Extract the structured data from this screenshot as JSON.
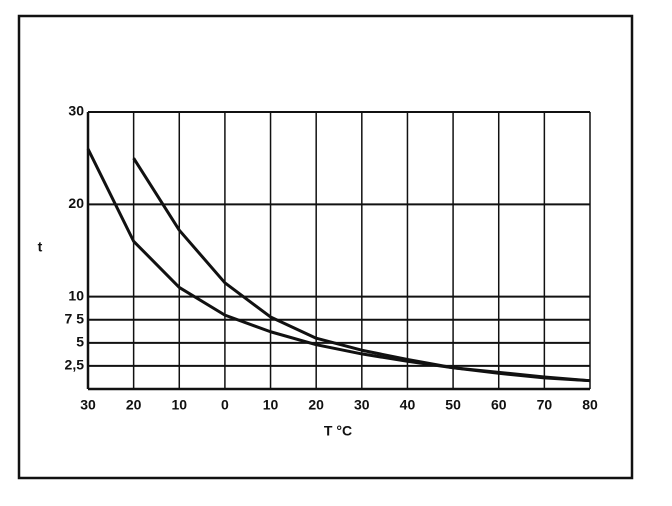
{
  "chart_data": {
    "type": "line",
    "x_label": "T °C",
    "y_label": "t",
    "x": [
      -30,
      -20,
      -10,
      0,
      10,
      20,
      30,
      40,
      50,
      60,
      70,
      80
    ],
    "series": [
      {
        "color": "#111111",
        "values": [
          null,
          25,
          17.2,
          11.5,
          7.8,
          5.5,
          4.2,
          3.2,
          2.3,
          1.7,
          1.2,
          0.9
        ]
      },
      {
        "color": "#111111",
        "values": [
          26,
          16,
          11,
          8,
          6.2,
          4.8,
          3.8,
          3,
          2.3,
          1.8,
          1.3,
          0.9
        ]
      }
    ],
    "xlim": [
      -30,
      80
    ],
    "xticks": [
      {
        "value": -30,
        "label": "30"
      },
      {
        "value": -20,
        "label": "20"
      },
      {
        "value": -10,
        "label": "10"
      },
      0,
      10,
      20,
      30,
      40,
      50,
      60,
      70,
      80
    ],
    "ylim": [
      0,
      30
    ],
    "yticks": [
      {
        "value": 2.5,
        "label": "2,5"
      },
      5,
      {
        "value": 7.5,
        "label": "7 5"
      },
      10,
      20,
      30
    ],
    "grid": true
  }
}
